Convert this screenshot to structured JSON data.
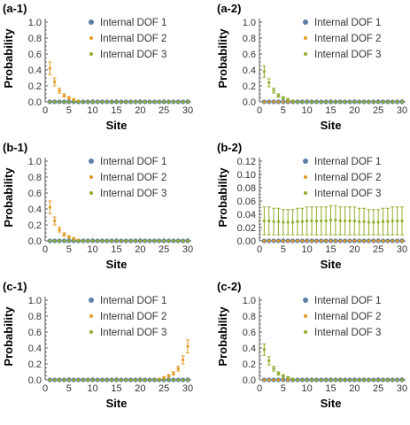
{
  "colors": {
    "series_1": "#5b7fa6",
    "series_2": "#e39a23",
    "series_3": "#8fae2b",
    "axis": "#555555"
  },
  "chart_data": [
    {
      "panel_label": "(a-1)",
      "type": "scatter",
      "xlabel": "Site",
      "ylabel": "Probability",
      "xlim": [
        0,
        30
      ],
      "ylim": [
        0,
        1.0
      ],
      "x_ticks": [
        "0",
        "5",
        "10",
        "15",
        "20",
        "25",
        "30"
      ],
      "y_ticks": [
        "0.0",
        "0.2",
        "0.4",
        "0.6",
        "0.8",
        "1.0"
      ],
      "legend_position": "top-right",
      "x": [
        1,
        2,
        3,
        4,
        5,
        6,
        7,
        8,
        9,
        10,
        11,
        12,
        13,
        14,
        15,
        16,
        17,
        18,
        19,
        20,
        21,
        22,
        23,
        24,
        25,
        26,
        27,
        28,
        29,
        30
      ],
      "series": [
        {
          "name": "Internal DOF 1",
          "values": [
            0,
            0,
            0,
            0,
            0,
            0,
            0,
            0,
            0,
            0,
            0,
            0,
            0,
            0,
            0,
            0,
            0,
            0,
            0,
            0,
            0,
            0,
            0,
            0,
            0,
            0,
            0,
            0,
            0,
            0
          ]
        },
        {
          "name": "Internal DOF 2",
          "values": [
            0.42,
            0.25,
            0.14,
            0.08,
            0.05,
            0.03,
            0.01,
            0,
            0,
            0,
            0,
            0,
            0,
            0,
            0,
            0,
            0,
            0,
            0,
            0,
            0,
            0,
            0,
            0,
            0,
            0,
            0,
            0,
            0,
            0
          ],
          "errors": [
            0.08,
            0.05,
            0.03,
            0.02,
            0.015,
            0.01,
            0.005,
            0,
            0,
            0,
            0,
            0,
            0,
            0,
            0,
            0,
            0,
            0,
            0,
            0,
            0,
            0,
            0,
            0,
            0,
            0,
            0,
            0,
            0,
            0
          ]
        },
        {
          "name": "Internal DOF 3",
          "values": [
            0,
            0,
            0,
            0,
            0,
            0,
            0,
            0,
            0,
            0,
            0,
            0,
            0,
            0,
            0,
            0,
            0,
            0,
            0,
            0,
            0,
            0,
            0,
            0,
            0,
            0,
            0,
            0,
            0,
            0
          ]
        }
      ]
    },
    {
      "panel_label": "(a-2)",
      "type": "scatter",
      "xlabel": "Site",
      "ylabel": "Probability",
      "xlim": [
        0,
        30
      ],
      "ylim": [
        0,
        1.0
      ],
      "x_ticks": [
        "0",
        "5",
        "10",
        "15",
        "20",
        "25",
        "30"
      ],
      "y_ticks": [
        "0.0",
        "0.2",
        "0.4",
        "0.6",
        "0.8",
        "1.0"
      ],
      "legend_position": "top-right",
      "x": [
        1,
        2,
        3,
        4,
        5,
        6,
        7,
        8,
        9,
        10,
        11,
        12,
        13,
        14,
        15,
        16,
        17,
        18,
        19,
        20,
        21,
        22,
        23,
        24,
        25,
        26,
        27,
        28,
        29,
        30
      ],
      "series": [
        {
          "name": "Internal DOF 1",
          "values": [
            0,
            0,
            0,
            0,
            0,
            0,
            0,
            0,
            0,
            0,
            0,
            0,
            0,
            0,
            0,
            0,
            0,
            0,
            0,
            0,
            0,
            0,
            0,
            0,
            0,
            0,
            0,
            0,
            0,
            0
          ]
        },
        {
          "name": "Internal DOF 2",
          "values": [
            0,
            0,
            0,
            0,
            0,
            0,
            0,
            0,
            0,
            0,
            0,
            0,
            0,
            0,
            0,
            0,
            0,
            0,
            0,
            0,
            0,
            0,
            0,
            0,
            0,
            0,
            0,
            0,
            0,
            0
          ]
        },
        {
          "name": "Internal DOF 3",
          "values": [
            0.38,
            0.24,
            0.14,
            0.08,
            0.05,
            0.03,
            0.01,
            0,
            0,
            0,
            0,
            0,
            0,
            0,
            0,
            0,
            0,
            0,
            0,
            0,
            0,
            0,
            0,
            0,
            0,
            0,
            0,
            0,
            0,
            0
          ],
          "errors": [
            0.07,
            0.05,
            0.03,
            0.02,
            0.015,
            0.01,
            0.005,
            0,
            0,
            0,
            0,
            0,
            0,
            0,
            0,
            0,
            0,
            0,
            0,
            0,
            0,
            0,
            0,
            0,
            0,
            0,
            0,
            0,
            0,
            0
          ]
        }
      ]
    },
    {
      "panel_label": "(b-1)",
      "type": "scatter",
      "xlabel": "Site",
      "ylabel": "Probability",
      "xlim": [
        0,
        30
      ],
      "ylim": [
        0,
        1.0
      ],
      "x_ticks": [
        "0",
        "5",
        "10",
        "15",
        "20",
        "25",
        "30"
      ],
      "y_ticks": [
        "0.0",
        "0.2",
        "0.4",
        "0.6",
        "0.8",
        "1.0"
      ],
      "legend_position": "top-right",
      "x": [
        1,
        2,
        3,
        4,
        5,
        6,
        7,
        8,
        9,
        10,
        11,
        12,
        13,
        14,
        15,
        16,
        17,
        18,
        19,
        20,
        21,
        22,
        23,
        24,
        25,
        26,
        27,
        28,
        29,
        30
      ],
      "series": [
        {
          "name": "Internal DOF 1",
          "values": [
            0,
            0,
            0,
            0,
            0,
            0,
            0,
            0,
            0,
            0,
            0,
            0,
            0,
            0,
            0,
            0,
            0,
            0,
            0,
            0,
            0,
            0,
            0,
            0,
            0,
            0,
            0,
            0,
            0,
            0
          ]
        },
        {
          "name": "Internal DOF 2",
          "values": [
            0.42,
            0.25,
            0.14,
            0.08,
            0.05,
            0.03,
            0.01,
            0,
            0,
            0,
            0,
            0,
            0,
            0,
            0,
            0,
            0,
            0,
            0,
            0,
            0,
            0,
            0,
            0,
            0,
            0,
            0,
            0,
            0,
            0
          ],
          "errors": [
            0.08,
            0.05,
            0.03,
            0.02,
            0.015,
            0.01,
            0.005,
            0,
            0,
            0,
            0,
            0,
            0,
            0,
            0,
            0,
            0,
            0,
            0,
            0,
            0,
            0,
            0,
            0,
            0,
            0,
            0,
            0,
            0,
            0
          ]
        },
        {
          "name": "Internal DOF 3",
          "values": [
            0,
            0,
            0,
            0,
            0,
            0,
            0,
            0,
            0,
            0,
            0,
            0,
            0,
            0,
            0,
            0,
            0,
            0,
            0,
            0,
            0,
            0,
            0,
            0,
            0,
            0,
            0,
            0,
            0,
            0
          ]
        }
      ]
    },
    {
      "panel_label": "(b-2)",
      "type": "scatter",
      "xlabel": "Site",
      "ylabel": "Probability",
      "xlim": [
        0,
        30
      ],
      "ylim": [
        0,
        0.12
      ],
      "x_ticks": [
        "0",
        "5",
        "10",
        "15",
        "20",
        "25",
        "30"
      ],
      "y_ticks": [
        "0.00",
        "0.02",
        "0.04",
        "0.06",
        "0.08",
        "0.10",
        "0.12"
      ],
      "legend_position": "top-right",
      "x": [
        1,
        2,
        3,
        4,
        5,
        6,
        7,
        8,
        9,
        10,
        11,
        12,
        13,
        14,
        15,
        16,
        17,
        18,
        19,
        20,
        21,
        22,
        23,
        24,
        25,
        26,
        27,
        28,
        29,
        30
      ],
      "series": [
        {
          "name": "Internal DOF 1",
          "values": [
            0,
            0,
            0,
            0,
            0,
            0,
            0,
            0,
            0,
            0,
            0,
            0,
            0,
            0,
            0,
            0,
            0,
            0,
            0,
            0,
            0,
            0,
            0,
            0,
            0,
            0,
            0,
            0,
            0,
            0
          ]
        },
        {
          "name": "Internal DOF 2",
          "values": [
            0,
            0,
            0,
            0,
            0,
            0,
            0,
            0,
            0,
            0,
            0,
            0,
            0,
            0,
            0,
            0,
            0,
            0,
            0,
            0,
            0,
            0,
            0,
            0,
            0,
            0,
            0,
            0,
            0,
            0
          ]
        },
        {
          "name": "Internal DOF 3",
          "values": [
            0.03,
            0.03,
            0.029,
            0.029,
            0.028,
            0.028,
            0.028,
            0.029,
            0.029,
            0.03,
            0.03,
            0.03,
            0.03,
            0.03,
            0.031,
            0.031,
            0.03,
            0.03,
            0.03,
            0.03,
            0.029,
            0.029,
            0.028,
            0.028,
            0.028,
            0.029,
            0.029,
            0.03,
            0.03,
            0.03
          ],
          "errors": [
            0.021,
            0.021,
            0.02,
            0.02,
            0.019,
            0.019,
            0.019,
            0.02,
            0.02,
            0.021,
            0.021,
            0.021,
            0.021,
            0.021,
            0.022,
            0.022,
            0.021,
            0.021,
            0.021,
            0.021,
            0.02,
            0.02,
            0.019,
            0.019,
            0.019,
            0.02,
            0.02,
            0.021,
            0.021,
            0.021
          ]
        }
      ]
    },
    {
      "panel_label": "(c-1)",
      "type": "scatter",
      "xlabel": "Site",
      "ylabel": "Probability",
      "xlim": [
        0,
        30
      ],
      "ylim": [
        0,
        1.0
      ],
      "x_ticks": [
        "0",
        "5",
        "10",
        "15",
        "20",
        "25",
        "30"
      ],
      "y_ticks": [
        "0.0",
        "0.2",
        "0.4",
        "0.6",
        "0.8",
        "1.0"
      ],
      "legend_position": "top-right",
      "x": [
        1,
        2,
        3,
        4,
        5,
        6,
        7,
        8,
        9,
        10,
        11,
        12,
        13,
        14,
        15,
        16,
        17,
        18,
        19,
        20,
        21,
        22,
        23,
        24,
        25,
        26,
        27,
        28,
        29,
        30
      ],
      "series": [
        {
          "name": "Internal DOF 1",
          "values": [
            0,
            0,
            0,
            0,
            0,
            0,
            0,
            0,
            0,
            0,
            0,
            0,
            0,
            0,
            0,
            0,
            0,
            0,
            0,
            0,
            0,
            0,
            0,
            0,
            0,
            0,
            0,
            0,
            0,
            0
          ]
        },
        {
          "name": "Internal DOF 2",
          "values": [
            0,
            0,
            0,
            0,
            0,
            0,
            0,
            0,
            0,
            0,
            0,
            0,
            0,
            0,
            0,
            0,
            0,
            0,
            0,
            0,
            0,
            0,
            0,
            0.01,
            0.03,
            0.05,
            0.08,
            0.14,
            0.25,
            0.42
          ],
          "errors": [
            0,
            0,
            0,
            0,
            0,
            0,
            0,
            0,
            0,
            0,
            0,
            0,
            0,
            0,
            0,
            0,
            0,
            0,
            0,
            0,
            0,
            0,
            0,
            0.005,
            0.01,
            0.015,
            0.02,
            0.03,
            0.05,
            0.08
          ]
        },
        {
          "name": "Internal DOF 3",
          "values": [
            0,
            0,
            0,
            0,
            0,
            0,
            0,
            0,
            0,
            0,
            0,
            0,
            0,
            0,
            0,
            0,
            0,
            0,
            0,
            0,
            0,
            0,
            0,
            0,
            0,
            0,
            0,
            0,
            0,
            0
          ]
        }
      ]
    },
    {
      "panel_label": "(c-2)",
      "type": "scatter",
      "xlabel": "Site",
      "ylabel": "Probability",
      "xlim": [
        0,
        30
      ],
      "ylim": [
        0,
        1.0
      ],
      "x_ticks": [
        "0",
        "5",
        "10",
        "15",
        "20",
        "25",
        "30"
      ],
      "y_ticks": [
        "0.0",
        "0.2",
        "0.4",
        "0.6",
        "0.8",
        "1.0"
      ],
      "legend_position": "top-right",
      "x": [
        1,
        2,
        3,
        4,
        5,
        6,
        7,
        8,
        9,
        10,
        11,
        12,
        13,
        14,
        15,
        16,
        17,
        18,
        19,
        20,
        21,
        22,
        23,
        24,
        25,
        26,
        27,
        28,
        29,
        30
      ],
      "series": [
        {
          "name": "Internal DOF 1",
          "values": [
            0,
            0,
            0,
            0,
            0,
            0,
            0,
            0,
            0,
            0,
            0,
            0,
            0,
            0,
            0,
            0,
            0,
            0,
            0,
            0,
            0,
            0,
            0,
            0,
            0,
            0,
            0,
            0,
            0,
            0
          ]
        },
        {
          "name": "Internal DOF 2",
          "values": [
            0,
            0,
            0,
            0,
            0,
            0,
            0,
            0,
            0,
            0,
            0,
            0,
            0,
            0,
            0,
            0,
            0,
            0,
            0,
            0,
            0,
            0,
            0,
            0,
            0,
            0,
            0,
            0,
            0,
            0
          ]
        },
        {
          "name": "Internal DOF 3",
          "values": [
            0.38,
            0.24,
            0.14,
            0.08,
            0.05,
            0.03,
            0.01,
            0,
            0,
            0,
            0,
            0,
            0,
            0,
            0,
            0,
            0,
            0,
            0,
            0,
            0,
            0,
            0,
            0,
            0,
            0,
            0,
            0,
            0,
            0
          ],
          "errors": [
            0.07,
            0.05,
            0.03,
            0.02,
            0.015,
            0.01,
            0.005,
            0,
            0,
            0,
            0,
            0,
            0,
            0,
            0,
            0,
            0,
            0,
            0,
            0,
            0,
            0,
            0,
            0,
            0,
            0,
            0,
            0,
            0,
            0
          ]
        }
      ]
    }
  ]
}
